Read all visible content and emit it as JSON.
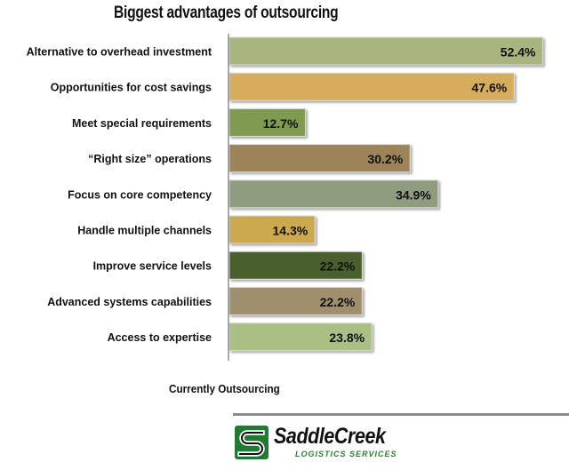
{
  "chart_data": {
    "type": "bar",
    "orientation": "horizontal",
    "title": "Biggest advantages of outsourcing",
    "xlabel": "Currently Outsourcing",
    "categories": [
      "Alternative to overhead investment",
      "Opportunities for cost savings",
      "Meet special requirements",
      "“Right size” operations",
      "Focus on core competency",
      "Handle multiple channels",
      "Improve service levels",
      "Advanced systems capabilities",
      "Access to expertise"
    ],
    "values": [
      52.4,
      47.6,
      12.7,
      30.2,
      34.9,
      14.3,
      22.2,
      22.2,
      23.8
    ],
    "value_labels": [
      "52.4%",
      "47.6%",
      "12.7%",
      "30.2%",
      "34.9%",
      "14.3%",
      "22.2%",
      "22.2%",
      "23.8%"
    ],
    "colors": [
      "#a7b57f",
      "#d6ad5c",
      "#7e9b51",
      "#9c8459",
      "#8f9c7f",
      "#cca84f",
      "#4a5e2f",
      "#a08f6c",
      "#a9bf84"
    ],
    "xlim": [
      0,
      55
    ],
    "grid": false,
    "legend": "none"
  },
  "logo": {
    "name": "SaddleCreek",
    "subtitle": "LOGISTICS SERVICES",
    "accent": "#2e7d32"
  }
}
